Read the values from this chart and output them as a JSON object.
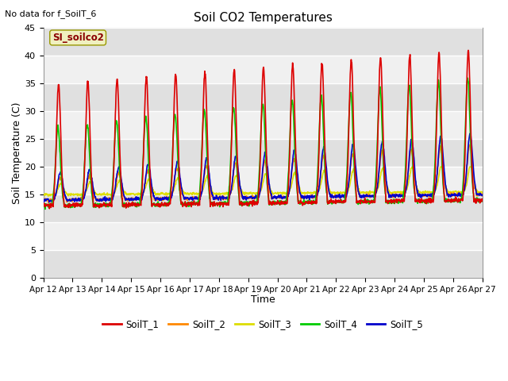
{
  "title": "Soil CO2 Temperatures",
  "xlabel": "Time",
  "ylabel": "Soil Temperature (C)",
  "no_data_text": "No data for f_SoilT_6",
  "site_label": "SI_soilco2",
  "ylim": [
    0,
    45
  ],
  "yticks": [
    0,
    5,
    10,
    15,
    20,
    25,
    30,
    35,
    40,
    45
  ],
  "x_tick_labels": [
    "Apr 12",
    "Apr 13",
    "Apr 14",
    "Apr 15",
    "Apr 16",
    "Apr 17",
    "Apr 18",
    "Apr 19",
    "Apr 20",
    "Apr 21",
    "Apr 22",
    "Apr 23",
    "Apr 24",
    "Apr 25",
    "Apr 26",
    "Apr 27"
  ],
  "fig_bg_color": "#ffffff",
  "plot_bg_color": "#ffffff",
  "band_color_dark": "#e0e0e0",
  "band_color_light": "#f0f0f0",
  "grid_color": "#ffffff",
  "series_colors": {
    "SoilT_1": "#dd0000",
    "SoilT_2": "#ff8800",
    "SoilT_3": "#dddd00",
    "SoilT_4": "#00cc00",
    "SoilT_5": "#0000cc"
  }
}
